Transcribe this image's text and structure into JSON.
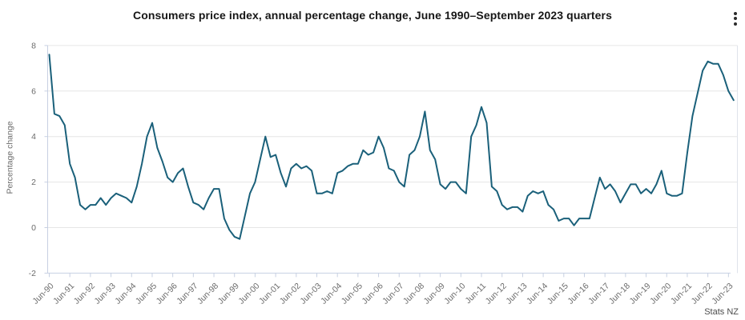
{
  "header": {
    "title": "Consumers price index, annual percentage change, June 1990–September 2023 quarters",
    "menu_icon": "kebab-menu-icon"
  },
  "source": {
    "label": "Stats NZ"
  },
  "chart_data": {
    "type": "line",
    "title": "Consumers price index, annual percentage change, June 1990–September 2023 quarters",
    "xlabel": "",
    "ylabel": "Percentage change",
    "ylim": [
      -2,
      8
    ],
    "y_ticks": [
      -2,
      0,
      2,
      4,
      6,
      8
    ],
    "grid": "horizontal",
    "legend": "none",
    "line_color": "#1a607a",
    "axis_color": "#c7d0e2",
    "grid_color": "#e6e6e6",
    "frequency": "quarterly",
    "start_period": "Jun-1990",
    "end_period": "Sep-2023",
    "x_tick_labels": [
      "Jun-90",
      "Jun-91",
      "Jun-92",
      "Jun-93",
      "Jun-94",
      "Jun-95",
      "Jun-96",
      "Jun-97",
      "Jun-98",
      "Jun-99",
      "Jun-00",
      "Jun-01",
      "Jun-02",
      "Jun-03",
      "Jun-04",
      "Jun-05",
      "Jun-06",
      "Jun-07",
      "Jun-08",
      "Jun-09",
      "Jun-10",
      "Jun-11",
      "Jun-12",
      "Jun-13",
      "Jun-14",
      "Jun-15",
      "Jun-16",
      "Jun-17",
      "Jun-18",
      "Jun-19",
      "Jun-20",
      "Jun-21",
      "Jun-22",
      "Jun-23"
    ],
    "values": [
      7.6,
      5.0,
      4.9,
      4.5,
      2.8,
      2.2,
      1.0,
      0.8,
      1.0,
      1.0,
      1.3,
      1.0,
      1.3,
      1.5,
      1.4,
      1.3,
      1.1,
      1.8,
      2.8,
      4.0,
      4.6,
      3.5,
      2.9,
      2.2,
      2.0,
      2.4,
      2.6,
      1.8,
      1.1,
      1.0,
      0.8,
      1.3,
      1.7,
      1.7,
      0.4,
      -0.1,
      -0.4,
      -0.5,
      0.5,
      1.5,
      2.0,
      3.0,
      4.0,
      3.1,
      3.2,
      2.4,
      1.8,
      2.6,
      2.8,
      2.6,
      2.7,
      2.5,
      1.5,
      1.5,
      1.6,
      1.5,
      2.4,
      2.5,
      2.7,
      2.8,
      2.8,
      3.4,
      3.2,
      3.3,
      4.0,
      3.5,
      2.6,
      2.5,
      2.0,
      1.8,
      3.2,
      3.4,
      4.0,
      5.1,
      3.4,
      3.0,
      1.9,
      1.7,
      2.0,
      2.0,
      1.7,
      1.5,
      4.0,
      4.5,
      5.3,
      4.6,
      1.8,
      1.6,
      1.0,
      0.8,
      0.9,
      0.9,
      0.7,
      1.4,
      1.6,
      1.5,
      1.6,
      1.0,
      0.8,
      0.3,
      0.4,
      0.4,
      0.1,
      0.4,
      0.4,
      0.4,
      1.3,
      2.2,
      1.7,
      1.9,
      1.6,
      1.1,
      1.5,
      1.9,
      1.9,
      1.5,
      1.7,
      1.5,
      1.9,
      2.5,
      1.5,
      1.4,
      1.4,
      1.5,
      3.3,
      4.9,
      5.9,
      6.9,
      7.3,
      7.2,
      7.2,
      6.7,
      6.0,
      5.6
    ],
    "source": "Stats NZ"
  }
}
